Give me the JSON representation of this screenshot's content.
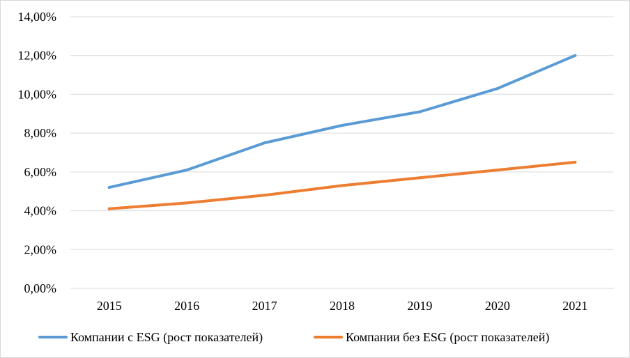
{
  "chart_data": {
    "type": "line",
    "title": "",
    "xlabel": "",
    "ylabel": "",
    "categories": [
      "2015",
      "2016",
      "2017",
      "2018",
      "2019",
      "2020",
      "2021"
    ],
    "ylim": [
      0,
      14
    ],
    "yticks": [
      0,
      2,
      4,
      6,
      8,
      10,
      12,
      14
    ],
    "ytick_labels": [
      "0,00%",
      "2,00%",
      "4,00%",
      "6,00%",
      "8,00%",
      "10,00%",
      "12,00%",
      "14,00%"
    ],
    "grid": true,
    "legend_position": "bottom",
    "series": [
      {
        "name": "Компании с ESG (рост показателей)",
        "color": "#5b9bd5",
        "values": [
          5.2,
          6.1,
          7.5,
          8.4,
          9.1,
          10.3,
          12.0
        ]
      },
      {
        "name": "Компании без ESG (рост показателей)",
        "color": "#ed7d31",
        "values": [
          4.1,
          4.4,
          4.8,
          5.3,
          5.7,
          6.1,
          6.5
        ]
      }
    ]
  }
}
